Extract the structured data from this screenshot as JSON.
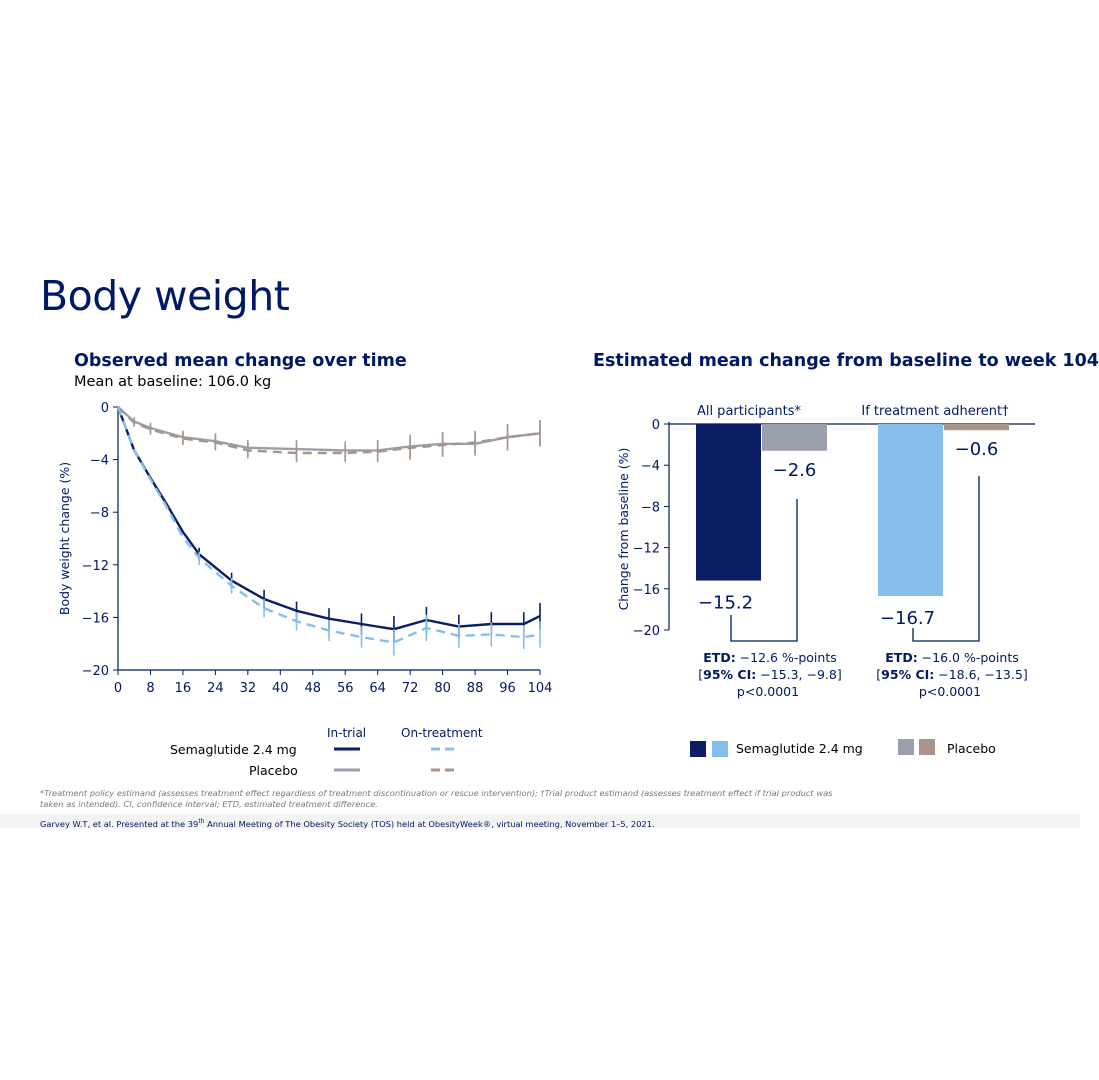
{
  "page": {
    "title": "Body weight",
    "footnote": "*Treatment policy estimand (assesses treatment effect regardless of treatment discontinuation or rescue intervention); †Trial product estimand (assesses treatment effect if trial product was taken as intended). CI, confidence interval; ETD, estimated treatment difference.",
    "citation_pre": "Garvey W.T, et al. Presented at the 39",
    "citation_sup": "th",
    "citation_post": " Annual Meeting of The Obesity Society (TOS) held at ObesityWeek®, virtual meeting, November 1–5, 2021."
  },
  "colors": {
    "navy": "#0b1d65",
    "light_blue": "#86bfe9",
    "gray": "#9aa0ab",
    "taupe": "#a8958a",
    "text": "#001965"
  },
  "chart_data": [
    {
      "type": "line",
      "title": "Observed mean change over time",
      "subtitle": "Mean at baseline: 106.0 kg",
      "ylabel": "Body weight change (%)",
      "xlabel": "",
      "xlim": [
        0,
        104
      ],
      "ylim": [
        -20,
        0
      ],
      "xticks": [
        0,
        8,
        16,
        24,
        32,
        40,
        48,
        56,
        64,
        72,
        80,
        88,
        96,
        104
      ],
      "yticks": [
        0,
        -4,
        -8,
        -12,
        -16,
        -20
      ],
      "legend": {
        "col_in_trial": "In-trial",
        "col_on_treatment": "On-treatment",
        "row_sema": "Semaglutide 2.4 mg",
        "row_placebo": "Placebo"
      },
      "series": [
        {
          "name": "Semaglutide 2.4 mg In-trial",
          "color": "#0b1d65",
          "dash": false,
          "x": [
            0,
            4,
            8,
            12,
            16,
            20,
            28,
            36,
            44,
            52,
            60,
            68,
            76,
            84,
            92,
            100,
            104
          ],
          "y": [
            0,
            -3.3,
            -5.4,
            -7.4,
            -9.5,
            -11.2,
            -13.2,
            -14.6,
            -15.5,
            -16.1,
            -16.5,
            -16.9,
            -16.2,
            -16.7,
            -16.5,
            -16.5,
            -15.9
          ],
          "err": [
            0,
            0,
            0,
            0,
            0,
            0.5,
            0.6,
            0.7,
            0.7,
            0.8,
            0.8,
            1.0,
            1.0,
            0.9,
            0.9,
            0.9,
            1.0
          ]
        },
        {
          "name": "Semaglutide 2.4 mg On-treatment",
          "color": "#86bfe9",
          "dash": true,
          "x": [
            0,
            4,
            8,
            12,
            16,
            20,
            28,
            36,
            44,
            52,
            60,
            68,
            76,
            84,
            92,
            100,
            104
          ],
          "y": [
            0,
            -3.3,
            -5.5,
            -7.6,
            -9.9,
            -11.5,
            -13.6,
            -15.3,
            -16.3,
            -17.0,
            -17.5,
            -17.9,
            -16.8,
            -17.4,
            -17.3,
            -17.5,
            -17.3
          ],
          "err": [
            0,
            0,
            0,
            0,
            0,
            0.5,
            0.6,
            0.7,
            0.7,
            0.8,
            0.8,
            1.0,
            1.0,
            0.9,
            0.9,
            0.9,
            1.0
          ]
        },
        {
          "name": "Placebo In-trial",
          "color": "#9aa0ab",
          "dash": false,
          "x": [
            0,
            4,
            8,
            16,
            24,
            32,
            44,
            56,
            64,
            72,
            80,
            88,
            96,
            104
          ],
          "y": [
            0,
            -1.1,
            -1.6,
            -2.3,
            -2.6,
            -3.1,
            -3.2,
            -3.3,
            -3.3,
            -3.0,
            -2.8,
            -2.8,
            -2.3,
            -2.0
          ],
          "err": [
            0,
            0.3,
            0.4,
            0.5,
            0.6,
            0.6,
            0.7,
            0.7,
            0.8,
            0.9,
            0.9,
            0.9,
            1.0,
            1.0
          ]
        },
        {
          "name": "Placebo On-treatment",
          "color": "#a8958a",
          "dash": true,
          "x": [
            0,
            4,
            8,
            16,
            24,
            32,
            44,
            56,
            64,
            72,
            80,
            88,
            96,
            104
          ],
          "y": [
            0,
            -1.2,
            -1.7,
            -2.4,
            -2.7,
            -3.3,
            -3.5,
            -3.5,
            -3.4,
            -3.1,
            -2.9,
            -2.7,
            -2.3,
            -2.0
          ],
          "err": [
            0,
            0.3,
            0.4,
            0.5,
            0.6,
            0.6,
            0.7,
            0.7,
            0.8,
            0.9,
            0.9,
            0.9,
            1.0,
            1.0
          ]
        }
      ]
    },
    {
      "type": "bar",
      "title": "Estimated mean change from baseline to week 104",
      "ylabel": "Change from baseline (%)",
      "ylim": [
        -20,
        0
      ],
      "yticks": [
        0,
        -4,
        -8,
        -12,
        -16,
        -20
      ],
      "categories": [
        "All participants*",
        "If treatment adherent†"
      ],
      "groups": [
        {
          "label": "All participants*",
          "bars": [
            {
              "name": "Semaglutide 2.4 mg",
              "value": -15.2,
              "label": "−15.2",
              "color": "#0b1d65"
            },
            {
              "name": "Placebo",
              "value": -2.6,
              "label": "−2.6",
              "color": "#9aa0ab"
            }
          ],
          "etd": {
            "line1_bold": "ETD:",
            "line1": " −12.6 %-points",
            "line2_pre": "[",
            "line2_bold": "95% CI:",
            "line2": " −15.3, −9.8]",
            "line3": "p<0.0001"
          }
        },
        {
          "label": "If treatment adherent†",
          "bars": [
            {
              "name": "Semaglutide 2.4 mg",
              "value": -16.7,
              "label": "−16.7",
              "color": "#86bfe9"
            },
            {
              "name": "Placebo",
              "value": -0.6,
              "label": "−0.6",
              "color": "#a8958a"
            }
          ],
          "etd": {
            "line1_bold": "ETD:",
            "line1": " −16.0 %-points",
            "line2_pre": "[",
            "line2_bold": "95% CI:",
            "line2": " −18.6, −13.5]",
            "line3": "p<0.0001"
          }
        }
      ],
      "legend": [
        {
          "name": "Semaglutide 2.4 mg",
          "colors": [
            "#0b1d65",
            "#86bfe9"
          ]
        },
        {
          "name": "Placebo",
          "colors": [
            "#9aa0ab",
            "#a8958a"
          ]
        }
      ]
    }
  ]
}
